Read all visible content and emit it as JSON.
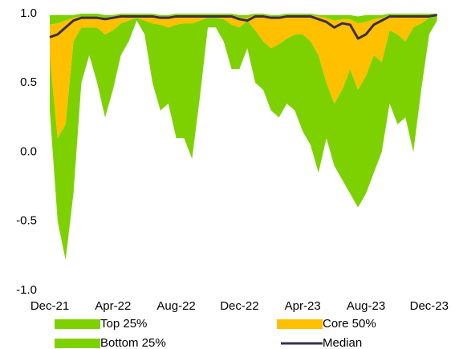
{
  "chart_data": {
    "type": "band",
    "categories": [
      "Dec-21",
      null,
      null,
      null,
      null,
      null,
      null,
      null,
      "Apr-22",
      null,
      null,
      null,
      null,
      null,
      null,
      null,
      "Aug-22",
      null,
      null,
      null,
      null,
      null,
      null,
      null,
      "Dec-22",
      null,
      null,
      null,
      null,
      null,
      null,
      null,
      "Apr-23",
      null,
      null,
      null,
      null,
      null,
      null,
      null,
      "Aug-23",
      null,
      null,
      null,
      null,
      null,
      null,
      null,
      "Dec-23",
      null
    ],
    "ylim": [
      -1,
      1
    ],
    "yticks": [
      {
        "value": -1,
        "label": "-1.0"
      },
      -0.5,
      {
        "value": 0,
        "label": "0.0"
      },
      0.5,
      {
        "value": 1,
        "label": "1.0"
      }
    ],
    "series": [
      {
        "name": "Top 25%",
        "color": "#7ed100",
        "values": [
          0.99,
          0.99,
          0.99,
          0.99,
          1,
          1,
          1,
          0.99,
          0.99,
          1,
          1,
          1,
          1,
          1,
          0.99,
          0.99,
          1,
          1,
          1,
          1,
          1,
          1,
          1,
          1,
          0.99,
          0.99,
          1,
          1,
          0.99,
          0.99,
          1,
          1,
          1,
          1,
          0.99,
          0.99,
          0.99,
          0.99,
          0.99,
          0.98,
          0.99,
          0.99,
          0.99,
          1,
          1,
          1,
          1,
          1,
          1,
          1
        ]
      },
      {
        "name": "Core 50%",
        "color": "#ffc000",
        "values": [
          0.92,
          0.93,
          0.95,
          0.97,
          0.98,
          0.98,
          0.98,
          0.97,
          0.98,
          0.99,
          0.99,
          0.99,
          0.99,
          0.99,
          0.98,
          0.98,
          0.99,
          0.99,
          0.99,
          0.99,
          0.99,
          0.99,
          0.99,
          0.99,
          0.97,
          0.97,
          0.99,
          0.99,
          0.98,
          0.98,
          0.99,
          0.99,
          0.99,
          0.99,
          0.98,
          0.97,
          0.95,
          0.96,
          0.96,
          0.93,
          0.94,
          0.96,
          0.97,
          0.99,
          0.99,
          0.99,
          0.99,
          0.99,
          0.99,
          0.99
        ]
      },
      {
        "name": "Bottom 25%",
        "color": "#7ed100",
        "low": [
          0.3,
          -0.5,
          -0.78,
          -0.3,
          0.5,
          0.7,
          0.5,
          0.25,
          0.45,
          0.7,
          0.8,
          0.95,
          0.85,
          0.5,
          0.3,
          0.35,
          0.1,
          0.1,
          -0.05,
          0.4,
          0.9,
          0.9,
          0.8,
          0.6,
          0.6,
          0.75,
          0.5,
          0.45,
          0.3,
          0.25,
          0.35,
          0.3,
          0.15,
          0.05,
          -0.15,
          0.1,
          -0.1,
          -0.2,
          -0.3,
          -0.4,
          -0.3,
          -0.15,
          0,
          0.35,
          0.2,
          0.25,
          0,
          0.45,
          0.85,
          0.95
        ],
        "values": [
          0.7,
          0.1,
          0.2,
          0.8,
          0.9,
          0.9,
          0.9,
          0.85,
          0.88,
          0.93,
          0.95,
          0.97,
          0.95,
          0.93,
          0.92,
          0.9,
          0.92,
          0.93,
          0.93,
          0.95,
          0.97,
          0.97,
          0.96,
          0.92,
          0.9,
          0.95,
          0.88,
          0.8,
          0.75,
          0.78,
          0.82,
          0.85,
          0.85,
          0.8,
          0.7,
          0.5,
          0.35,
          0.45,
          0.6,
          0.45,
          0.55,
          0.7,
          0.65,
          0.88,
          0.85,
          0.8,
          0.9,
          0.93,
          0.97,
          0.98
        ]
      },
      {
        "name": "Median",
        "color": "#3b2e4f",
        "values": [
          0.83,
          0.85,
          0.9,
          0.95,
          0.97,
          0.97,
          0.97,
          0.96,
          0.97,
          0.98,
          0.98,
          0.98,
          0.98,
          0.98,
          0.97,
          0.97,
          0.98,
          0.98,
          0.98,
          0.98,
          0.98,
          0.98,
          0.98,
          0.98,
          0.96,
          0.95,
          0.98,
          0.98,
          0.97,
          0.97,
          0.98,
          0.98,
          0.98,
          0.98,
          0.96,
          0.94,
          0.9,
          0.93,
          0.92,
          0.82,
          0.85,
          0.92,
          0.95,
          0.98,
          0.98,
          0.98,
          0.98,
          0.98,
          0.98,
          0.99
        ]
      }
    ]
  }
}
